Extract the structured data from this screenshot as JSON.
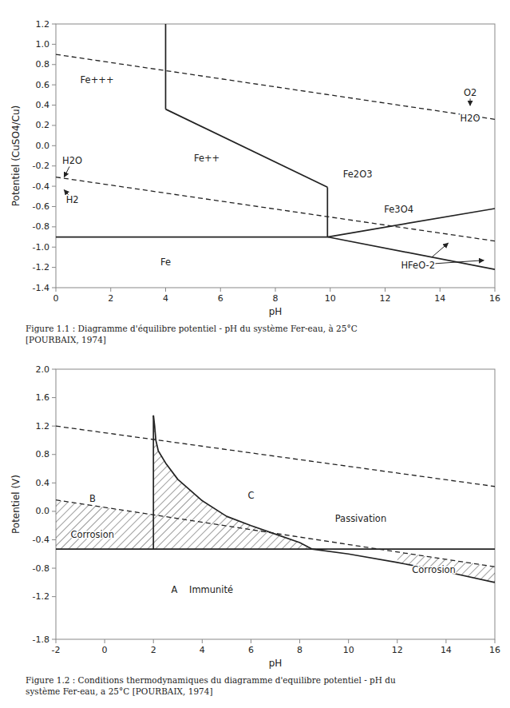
{
  "chart_data": [
    {
      "type": "line",
      "xlabel": "pH",
      "ylabel": "Potentiel (CuSO4/Cu)",
      "xlim": [
        0,
        16
      ],
      "ylim": [
        -1.4,
        1.2
      ],
      "xticks": [
        0,
        2,
        4,
        6,
        8,
        10,
        12,
        14,
        16
      ],
      "yticks": [
        -1.4,
        -1.2,
        {
          "value": -1,
          "label": "-1.0"
        },
        -0.8,
        -0.6,
        -0.4,
        -0.2,
        {
          "value": 0,
          "label": "0.0"
        },
        0.2,
        0.4,
        0.6,
        0.8,
        {
          "value": 1,
          "label": "1.0"
        },
        1.2
      ],
      "series": [
        {
          "x": [
            0,
            16
          ],
          "values": [
            0.9,
            0.26
          ],
          "line_style": "dashed"
        },
        {
          "x": [
            0,
            16
          ],
          "values": [
            -0.31,
            -0.94
          ],
          "line_style": "dashed"
        },
        {
          "x": [
            4.0,
            4.0
          ],
          "values": [
            1.2,
            0.36
          ],
          "line_style": "solid"
        },
        {
          "x": [
            4.0,
            9.9
          ],
          "values": [
            0.36,
            -0.41
          ],
          "line_style": "solid"
        },
        {
          "x": [
            9.9,
            9.9
          ],
          "values": [
            -0.41,
            -0.9
          ],
          "line_style": "solid"
        },
        {
          "x": [
            9.9,
            16.0
          ],
          "values": [
            -0.9,
            -0.62
          ],
          "line_style": "solid"
        },
        {
          "x": [
            0,
            9.9
          ],
          "values": [
            -0.9,
            -0.9
          ],
          "line_style": "solid"
        },
        {
          "x": [
            9.9,
            16.0
          ],
          "values": [
            -0.9,
            -1.22
          ],
          "line_style": "solid"
        }
      ],
      "annotations": [
        {
          "text": "Fe+++",
          "x": 1.5,
          "y": 0.65
        },
        {
          "text": "Fe++",
          "x": 5.5,
          "y": -0.12
        },
        {
          "text": "Fe2O3",
          "x": 11.0,
          "y": -0.28
        },
        {
          "text": "Fe3O4",
          "x": 12.5,
          "y": -0.63
        },
        {
          "text": "Fe",
          "x": 4.0,
          "y": -1.15
        },
        {
          "text": "HFeO-2",
          "x": 13.2,
          "y": -1.18,
          "arrows": [
            {
              "from": [
                13.4,
                -1.17
              ],
              "to": [
                14.3,
                -0.96
              ]
            },
            {
              "from": [
                13.4,
                -1.17
              ],
              "to": [
                15.6,
                -1.13
              ]
            }
          ]
        },
        {
          "text": "H2O",
          "x": 0.6,
          "y": -0.15,
          "arrows": [
            {
              "from": [
                0.6,
                -0.15
              ],
              "to": [
                0.3,
                -0.31
              ]
            }
          ]
        },
        {
          "text": "H2",
          "x": 0.6,
          "y": -0.53,
          "arrows": [
            {
              "from": [
                0.6,
                -0.53
              ],
              "to": [
                0.3,
                -0.435
              ]
            }
          ]
        },
        {
          "text": "O2",
          "x": 15.1,
          "y": 0.52,
          "arrows": [
            {
              "from": [
                15.1,
                0.52
              ],
              "to": [
                15.1,
                0.395
              ]
            }
          ]
        },
        {
          "text": "H2O",
          "x": 15.1,
          "y": 0.27
        }
      ],
      "caption": "Figure 1.1 : Diagramme d'équilibre potentiel - pH du système Fer-eau, à 25°C\n[POURBAIX, 1974]"
    },
    {
      "type": "line",
      "xlabel": "pH",
      "ylabel": "Potentiel (V)",
      "xlim": [
        -2,
        16
      ],
      "ylim": [
        -1.8,
        2.0
      ],
      "xticks": [
        -2,
        0,
        2,
        4,
        6,
        8,
        10,
        12,
        14,
        16
      ],
      "yticks": [
        -1.8,
        -1.2,
        -0.8,
        -0.4,
        {
          "value": 0,
          "label": "0.0"
        },
        0.4,
        0.8,
        1.2,
        1.6,
        {
          "value": 2,
          "label": "2.0"
        }
      ],
      "series": [
        {
          "x": [
            -2,
            16
          ],
          "values": [
            1.2,
            0.35
          ],
          "line_style": "dashed"
        },
        {
          "x": [
            -2,
            16
          ],
          "values": [
            0.16,
            -0.78
          ],
          "line_style": "dashed"
        },
        {
          "x": [
            -2,
            16
          ],
          "values": [
            -0.53,
            -0.53
          ],
          "line_style": "solid"
        },
        {
          "x": [
            2.0,
            2.05,
            2.1,
            2.2,
            2.5,
            3.0,
            4.0,
            5.0,
            6.0,
            7.0,
            8.0,
            8.5
          ],
          "values": [
            1.35,
            1.2,
            1.0,
            0.85,
            0.68,
            0.45,
            0.15,
            -0.07,
            -0.2,
            -0.32,
            -0.44,
            -0.53
          ],
          "line_style": "solid"
        },
        {
          "x": [
            2.0,
            2.0
          ],
          "values": [
            1.35,
            -0.53
          ],
          "line_style": "solid"
        },
        {
          "x": [
            8.5,
            10.0,
            12.0,
            14.0,
            16.0
          ],
          "values": [
            -0.53,
            -0.6,
            -0.72,
            -0.85,
            -1.0
          ],
          "line_style": "solid"
        }
      ],
      "hatch": [
        {
          "x": [
            -2,
            2
          ],
          "between": [
            1,
            2
          ]
        },
        {
          "x": [
            2.0,
            8.5
          ],
          "between": [
            3,
            2
          ]
        },
        {
          "x": [
            12.0,
            16.0
          ],
          "between": [
            1,
            5
          ]
        }
      ],
      "annotations": [
        {
          "text": "B",
          "x": -0.5,
          "y": 0.18
        },
        {
          "text": "C",
          "x": 6.0,
          "y": 0.22
        },
        {
          "text": "Passivation",
          "x": 10.5,
          "y": -0.1
        },
        {
          "text": "Corrosion",
          "x": -0.5,
          "y": -0.33
        },
        {
          "text": "A    Immunité",
          "x": 4.0,
          "y": -1.1
        },
        {
          "text": "Corrosion",
          "x": 13.5,
          "y": -0.82
        }
      ],
      "caption": "Figure 1.2 : Conditions thermodynamiques du diagramme d'equilibre potentiel - pH du\nsystème Fer-eau, a 25°C [POURBAIX, 1974]"
    }
  ]
}
